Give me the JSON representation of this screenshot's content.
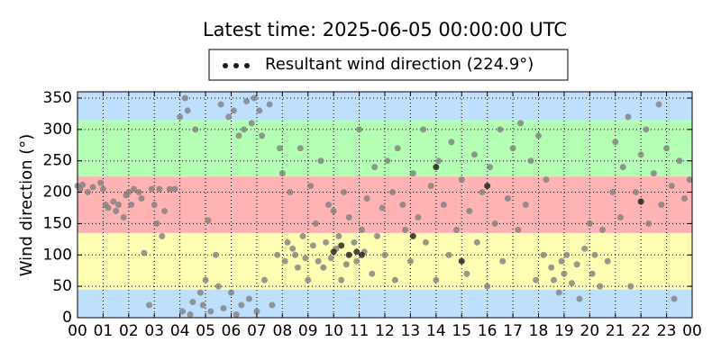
{
  "chart_data": {
    "type": "scatter",
    "title": "Latest time: 2025-06-05 00:00:00 UTC",
    "y_label": "Wind direction (°)",
    "xlim": [
      0,
      24
    ],
    "ylim": [
      0,
      360
    ],
    "xticks": [
      {
        "value": 0,
        "label": "00"
      },
      {
        "value": 1,
        "label": "01"
      },
      {
        "value": 2,
        "label": "02"
      },
      {
        "value": 3,
        "label": "03"
      },
      {
        "value": 4,
        "label": "04"
      },
      {
        "value": 5,
        "label": "05"
      },
      {
        "value": 6,
        "label": "06"
      },
      {
        "value": 7,
        "label": "07"
      },
      {
        "value": 8,
        "label": "08"
      },
      {
        "value": 9,
        "label": "09"
      },
      {
        "value": 10,
        "label": "10"
      },
      {
        "value": 11,
        "label": "11"
      },
      {
        "value": 12,
        "label": "12"
      },
      {
        "value": 13,
        "label": "13"
      },
      {
        "value": 14,
        "label": "14"
      },
      {
        "value": 15,
        "label": "15"
      },
      {
        "value": 16,
        "label": "16"
      },
      {
        "value": 17,
        "label": "17"
      },
      {
        "value": 18,
        "label": "18"
      },
      {
        "value": 19,
        "label": "19"
      },
      {
        "value": 20,
        "label": "20"
      },
      {
        "value": 21,
        "label": "21"
      },
      {
        "value": 22,
        "label": "22"
      },
      {
        "value": 23,
        "label": "23"
      },
      {
        "value": 24,
        "label": "00"
      }
    ],
    "yticks": [
      0,
      50,
      100,
      150,
      200,
      250,
      300,
      350
    ],
    "grid": true,
    "legend": "top",
    "bands": [
      {
        "from": 0,
        "to": 45,
        "color": "#bfdfff"
      },
      {
        "from": 45,
        "to": 135,
        "color": "#ffffb3"
      },
      {
        "from": 135,
        "to": 225,
        "color": "#ffb3b3"
      },
      {
        "from": 225,
        "to": 315,
        "color": "#b3ffb3"
      },
      {
        "from": 315,
        "to": 360,
        "color": "#bfdfff"
      }
    ],
    "series": [
      {
        "color": "#808080",
        "x": [
          0.0,
          0.1,
          0.2,
          0.4,
          0.6,
          0.9,
          1.0,
          1.1,
          1.2,
          1.4,
          1.5,
          1.6,
          1.8,
          1.9,
          2.0,
          2.1,
          2.2,
          2.4,
          2.5,
          2.6,
          2.8,
          2.9,
          3.0,
          3.1,
          3.2,
          3.3,
          3.4,
          3.6,
          3.8,
          4.0,
          4.1,
          4.2,
          4.3,
          4.4,
          4.5,
          4.6,
          4.8,
          4.9,
          5.0,
          5.1,
          5.2,
          5.4,
          5.5,
          5.6,
          5.7,
          5.9,
          6.0,
          6.1,
          6.2,
          6.3,
          6.4,
          6.5,
          6.6,
          6.7,
          6.8,
          6.9,
          7.0,
          7.1,
          7.2,
          7.3,
          7.5,
          7.6,
          7.8,
          7.9,
          8.0,
          8.1,
          8.2,
          8.3,
          8.4,
          8.5,
          8.6,
          8.7,
          8.8,
          8.9,
          9.0,
          9.1,
          9.2,
          9.3,
          9.4,
          9.5,
          9.6,
          9.7,
          9.8,
          9.9,
          10.0,
          10.1,
          10.2,
          10.3,
          10.4,
          10.5,
          10.6,
          10.8,
          10.9,
          11.0,
          11.1,
          11.2,
          11.3,
          11.5,
          11.6,
          11.7,
          11.9,
          12.0,
          12.1,
          12.3,
          12.4,
          12.5,
          12.7,
          12.8,
          13.0,
          13.1,
          13.3,
          13.5,
          13.6,
          13.8,
          14.0,
          14.1,
          14.3,
          14.5,
          14.6,
          14.8,
          15.0,
          15.2,
          15.3,
          15.5,
          15.6,
          15.8,
          16.0,
          16.1,
          16.3,
          16.5,
          16.6,
          16.8,
          17.0,
          17.2,
          17.3,
          17.5,
          17.7,
          17.9,
          18.0,
          18.2,
          18.3,
          18.5,
          18.6,
          18.8,
          18.9,
          19.0,
          19.1,
          19.3,
          19.5,
          19.6,
          19.8,
          20.0,
          20.1,
          20.2,
          20.4,
          20.5,
          20.7,
          20.9,
          21.0,
          21.2,
          21.3,
          21.5,
          21.6,
          21.8,
          22.0,
          22.2,
          22.3,
          22.5,
          22.7,
          22.8,
          23.0,
          23.2,
          23.3,
          23.5,
          23.7,
          23.9
        ],
        "values": [
          210,
          205,
          212,
          200,
          208,
          215,
          205,
          180,
          175,
          185,
          170,
          180,
          160,
          195,
          200,
          180,
          205,
          200,
          190,
          103,
          20,
          205,
          180,
          150,
          205,
          130,
          170,
          205,
          205,
          320,
          10,
          350,
          330,
          5,
          25,
          300,
          40,
          20,
          60,
          155,
          10,
          100,
          50,
          340,
          15,
          320,
          40,
          330,
          5,
          290,
          20,
          300,
          345,
          30,
          310,
          350,
          10,
          330,
          290,
          60,
          340,
          20,
          100,
          270,
          230,
          90,
          120,
          200,
          110,
          100,
          80,
          270,
          130,
          95,
          60,
          210,
          115,
          150,
          90,
          250,
          80,
          120,
          180,
          95,
          170,
          110,
          130,
          60,
          200,
          85,
          160,
          120,
          90,
          300,
          140,
          105,
          190,
          70,
          240,
          130,
          175,
          100,
          250,
          200,
          60,
          270,
          180,
          140,
          90,
          230,
          160,
          300,
          120,
          210,
          60,
          250,
          180,
          100,
          280,
          140,
          220,
          70,
          170,
          260,
          120,
          200,
          50,
          240,
          150,
          300,
          90,
          190,
          270,
          140,
          310,
          180,
          250,
          60,
          290,
          100,
          220,
          80,
          60,
          40,
          90,
          70,
          100,
          55,
          85,
          30,
          110,
          150,
          70,
          100,
          50,
          140,
          90,
          200,
          280,
          160,
          240,
          320,
          50,
          200,
          260,
          300,
          150,
          230,
          340,
          180,
          270,
          210,
          30,
          250,
          190,
          220
        ]
      },
      {
        "name": "Resultant wind direction (224.9°)",
        "color": "#1a1a1a",
        "x": [
          10.0,
          10.3,
          10.6,
          10.9,
          11.1,
          13.1,
          14.0,
          15.0,
          16.0,
          22.0
        ],
        "values": [
          105,
          115,
          100,
          105,
          100,
          130,
          240,
          90,
          210,
          185
        ]
      }
    ]
  }
}
